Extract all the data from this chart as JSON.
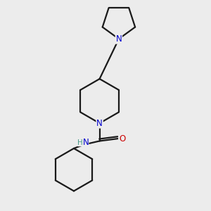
{
  "background_color": "#ececec",
  "bond_color": "#1a1a1a",
  "N_color": "#0000cc",
  "O_color": "#cc0000",
  "H_color": "#4a9a8a",
  "line_width": 1.6,
  "figsize": [
    3.0,
    3.0
  ],
  "dpi": 100,
  "xlim": [
    -1.8,
    2.2
  ],
  "ylim": [
    -4.2,
    2.8
  ]
}
